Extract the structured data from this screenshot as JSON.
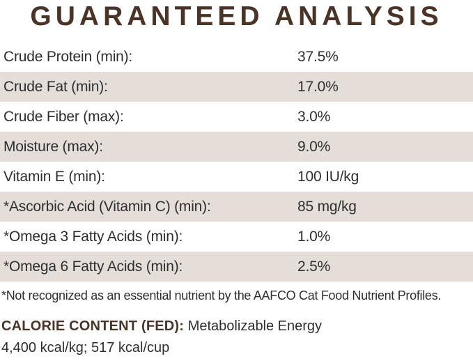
{
  "title": "GUARANTEED ANALYSIS",
  "table": {
    "rows": [
      {
        "label": "Crude Protein (min):",
        "value": "37.5%"
      },
      {
        "label": "Crude Fat (min):",
        "value": "17.0%"
      },
      {
        "label": "Crude Fiber (max):",
        "value": "3.0%"
      },
      {
        "label": "Moisture (max):",
        "value": "9.0%"
      },
      {
        "label": "Vitamin E (min):",
        "value": "100 IU/kg"
      },
      {
        "label": "*Ascorbic Acid (Vitamin C) (min):",
        "value": "85 mg/kg"
      },
      {
        "label": "*Omega 3 Fatty Acids (min):",
        "value": "1.0%"
      },
      {
        "label": "*Omega 6 Fatty Acids (min):",
        "value": "2.5%"
      }
    ]
  },
  "footnote": "*Not recognized as an essential nutrient by the AAFCO Cat Food Nutrient Profiles.",
  "calorie": {
    "heading": "CALORIE CONTENT (FED):",
    "description": "Metabolizable Energy",
    "values": "4,400 kcal/kg; 517 kcal/cup"
  },
  "colors": {
    "title_brown": "#4a3327",
    "stripe_beige": "#e5ded8",
    "text_dark": "#2e2e2e",
    "background": "#ffffff"
  }
}
